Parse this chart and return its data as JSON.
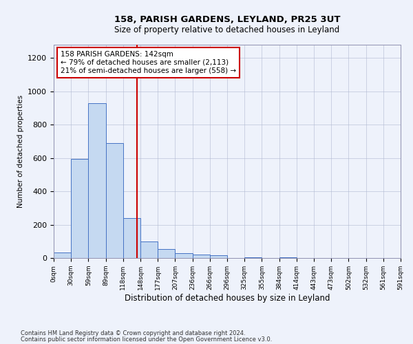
{
  "title1": "158, PARISH GARDENS, LEYLAND, PR25 3UT",
  "title2": "Size of property relative to detached houses in Leyland",
  "xlabel": "Distribution of detached houses by size in Leyland",
  "ylabel": "Number of detached properties",
  "annotation_line1": "158 PARISH GARDENS: 142sqm",
  "annotation_line2": "← 79% of detached houses are smaller (2,113)",
  "annotation_line3": "21% of semi-detached houses are larger (558) →",
  "bar_values": [
    35,
    595,
    930,
    690,
    240,
    100,
    55,
    30,
    20,
    15,
    0,
    5,
    0,
    5,
    0,
    0,
    0,
    0,
    0,
    0
  ],
  "bar_color": "#c5d9f1",
  "bar_edge_color": "#4472c4",
  "x_labels": [
    "0sqm",
    "30sqm",
    "59sqm",
    "89sqm",
    "118sqm",
    "148sqm",
    "177sqm",
    "207sqm",
    "236sqm",
    "266sqm",
    "296sqm",
    "325sqm",
    "355sqm",
    "384sqm",
    "414sqm",
    "443sqm",
    "473sqm",
    "502sqm",
    "532sqm",
    "561sqm",
    "591sqm"
  ],
  "ylim": [
    0,
    1280
  ],
  "yticks": [
    0,
    200,
    400,
    600,
    800,
    1000,
    1200
  ],
  "marker_color": "#cc0000",
  "footnote1": "Contains HM Land Registry data © Crown copyright and database right 2024.",
  "footnote2": "Contains public sector information licensed under the Open Government Licence v3.0.",
  "annotation_box_color": "#ffffff",
  "annotation_box_edge": "#cc0000",
  "background_color": "#eef2fb"
}
